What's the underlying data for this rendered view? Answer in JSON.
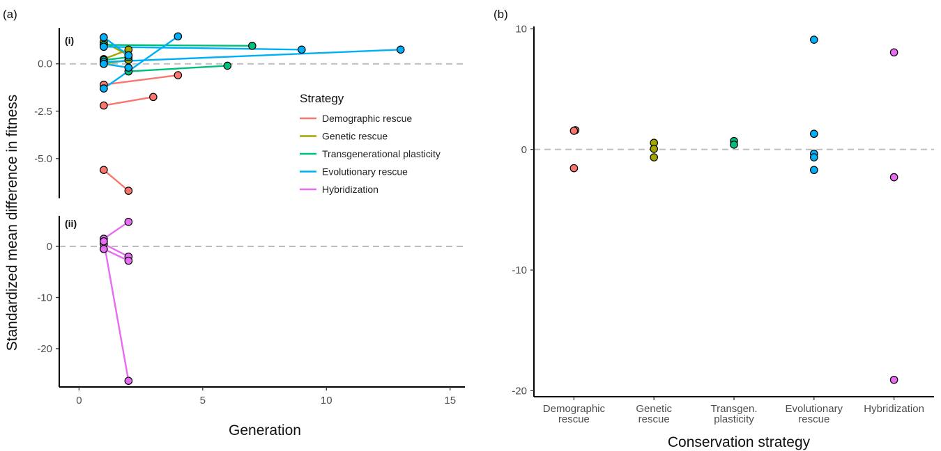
{
  "colors": {
    "demographic": "#F8766D",
    "genetic": "#A3A500",
    "transgen": "#00BF7D",
    "evolutionary": "#00B0F6",
    "hybridization": "#E76BF3",
    "refline": "#bdbdbd"
  },
  "figure": {
    "panel_a_label": "(a)",
    "panel_b_label": "(b)",
    "sub_i": "(i)",
    "sub_ii": "(ii)",
    "ylabel": "Standardized mean difference in fitness",
    "xlabel_a": "Generation",
    "xlabel_b": "Conservation strategy",
    "legend_title": "Strategy"
  },
  "chart_data": [
    {
      "id": "a-i",
      "type": "line",
      "xlim": [
        -0.8,
        15.6
      ],
      "ylim": [
        -7.1,
        1.9
      ],
      "x_ticks": [
        0,
        5,
        10,
        15
      ],
      "y_ticks": [
        0,
        -2.5,
        -5
      ],
      "y_tick_labels": [
        "0.0",
        "-2.5",
        "-5.0"
      ],
      "xlabel": "Generation",
      "legend": {
        "title": "Strategy",
        "entries": [
          {
            "name": "Demographic rescue",
            "color": "#F8766D"
          },
          {
            "name": "Genetic rescue",
            "color": "#A3A500"
          },
          {
            "name": "Transgenerational plasticity",
            "color": "#00BF7D"
          },
          {
            "name": "Evolutionary rescue",
            "color": "#00B0F6"
          },
          {
            "name": "Hybridization",
            "color": "#E76BF3"
          }
        ]
      },
      "series": [
        {
          "name": "Demographic rescue",
          "color": "#F8766D",
          "segments": [
            [
              [
                1,
                -1.1
              ],
              [
                4,
                -0.6
              ]
            ],
            [
              [
                1,
                -2.2
              ],
              [
                3,
                -1.75
              ]
            ],
            [
              [
                1,
                -5.6
              ],
              [
                2,
                -6.7
              ]
            ]
          ]
        },
        {
          "name": "Genetic rescue",
          "color": "#A3A500",
          "segments": [
            [
              [
                1,
                1.15
              ],
              [
                2,
                0.45
              ]
            ],
            [
              [
                1,
                0.25
              ],
              [
                2,
                0.75
              ]
            ],
            [
              [
                1,
                0.0
              ],
              [
                2,
                0.2
              ]
            ]
          ]
        },
        {
          "name": "Transgenerational plasticity",
          "color": "#00BF7D",
          "segments": [
            [
              [
                1,
                1.0
              ],
              [
                7,
                0.95
              ]
            ],
            [
              [
                2,
                -0.4
              ],
              [
                6,
                -0.1
              ]
            ],
            [
              [
                1,
                0.2
              ],
              [
                2,
                0.35
              ]
            ]
          ]
        },
        {
          "name": "Evolutionary rescue",
          "color": "#00B0F6",
          "segments": [
            [
              [
                1,
                1.4
              ],
              [
                2,
                0.45
              ]
            ],
            [
              [
                1,
                0.9
              ],
              [
                9,
                0.75
              ]
            ],
            [
              [
                1,
                0.1
              ],
              [
                13,
                0.75
              ]
            ],
            [
              [
                1,
                -1.3
              ],
              [
                4,
                1.45
              ]
            ],
            [
              [
                1,
                0.0
              ],
              [
                2,
                -0.2
              ]
            ]
          ]
        }
      ]
    },
    {
      "id": "a-ii",
      "type": "line",
      "xlim": [
        -0.8,
        15.6
      ],
      "ylim": [
        -27.5,
        6.0
      ],
      "x_ticks": [
        0,
        5,
        10,
        15
      ],
      "y_ticks": [
        0,
        -10,
        -20
      ],
      "xlabel": "Generation",
      "series": [
        {
          "name": "Hybridization",
          "color": "#E76BF3",
          "segments": [
            [
              [
                1,
                1.5
              ],
              [
                2,
                4.8
              ]
            ],
            [
              [
                1,
                0.5
              ],
              [
                2,
                -2.0
              ]
            ],
            [
              [
                1,
                -0.5
              ],
              [
                2,
                -2.8
              ]
            ],
            [
              [
                1,
                1.0
              ],
              [
                2,
                -26.3
              ]
            ]
          ]
        }
      ]
    },
    {
      "id": "b",
      "type": "scatter",
      "ylim": [
        -20.5,
        10.2
      ],
      "y_ticks": [
        10,
        0,
        -10,
        -20
      ],
      "categories": [
        "Demographic rescue",
        "Genetic rescue",
        "Transgen. plasticity",
        "Evolutionary rescue",
        "Hybridization"
      ],
      "category_labels": [
        [
          "Demographic",
          "rescue"
        ],
        [
          "Genetic",
          "rescue"
        ],
        [
          "Transgen.",
          "plasticity"
        ],
        [
          "Evolutionary",
          "rescue"
        ],
        [
          "Hybridization",
          ""
        ]
      ],
      "xlabel": "Conservation strategy",
      "points": [
        {
          "category": 0,
          "y": 1.6,
          "color": "#F8766D"
        },
        {
          "category": 0,
          "y": 1.55,
          "color": "#F8766D"
        },
        {
          "category": 0,
          "y": -1.55,
          "color": "#F8766D"
        },
        {
          "category": 1,
          "y": 0.55,
          "color": "#A3A500"
        },
        {
          "category": 1,
          "y": 0.05,
          "color": "#A3A500"
        },
        {
          "category": 1,
          "y": -0.65,
          "color": "#A3A500"
        },
        {
          "category": 2,
          "y": 0.7,
          "color": "#00BF7D"
        },
        {
          "category": 2,
          "y": 0.4,
          "color": "#00BF7D"
        },
        {
          "category": 3,
          "y": 9.1,
          "color": "#00B0F6"
        },
        {
          "category": 3,
          "y": 1.3,
          "color": "#00B0F6"
        },
        {
          "category": 3,
          "y": -0.35,
          "color": "#00B0F6"
        },
        {
          "category": 3,
          "y": -0.65,
          "color": "#00B0F6"
        },
        {
          "category": 3,
          "y": -1.7,
          "color": "#00B0F6"
        },
        {
          "category": 4,
          "y": 8.05,
          "color": "#E76BF3"
        },
        {
          "category": 4,
          "y": -2.3,
          "color": "#E76BF3"
        },
        {
          "category": 4,
          "y": -19.1,
          "color": "#E76BF3"
        }
      ]
    }
  ]
}
